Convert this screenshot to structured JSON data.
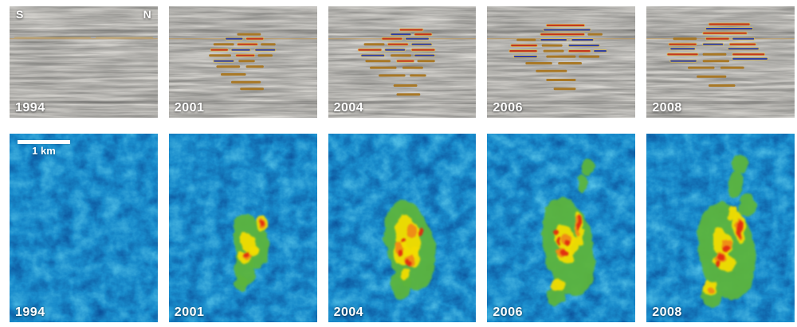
{
  "figure": {
    "description": "Time-lapse seismic monitoring figure: five seismic cross-sections (top row) and five map-view reflection-amplitude maps (bottom row) for survey years 1994, 2001, 2004, 2006 and 2008."
  },
  "years": [
    "1994",
    "2001",
    "2004",
    "2006",
    "2008"
  ],
  "labels": {
    "south_marker": "S",
    "north_marker": "N",
    "scalebar_label": "1 km"
  },
  "colors": {
    "page_background": "#ffffff",
    "seismic_base": "#b8b8b4",
    "map_base": "#2a93c8",
    "label_text": "#ffffff",
    "fringe": "#d9bc55",
    "spot": {
      "r": "#c43318",
      "b": "#2c3ba2",
      "o": "#a8751f",
      "f": "#c79a40"
    },
    "plume": {
      "green": "#5cb43c",
      "yellow": "#f2dc00",
      "orange": "#f08418",
      "red": "#df2b10"
    }
  },
  "render": {
    "seismic_seeds": [
      3,
      7,
      11,
      19,
      23
    ],
    "map_seeds": [
      5,
      13,
      29,
      37,
      41
    ]
  },
  "seismic_panels": [
    {
      "year": "1994",
      "spots": [
        [
          27.5,
          3,
          55,
          "f"
        ],
        [
          27.5,
          58,
          97,
          "f"
        ]
      ]
    },
    {
      "year": "2001",
      "spots": [
        [
          24,
          46,
          62,
          "o"
        ],
        [
          28,
          38,
          50,
          "b"
        ],
        [
          28,
          52,
          64,
          "r"
        ],
        [
          33,
          30,
          44,
          "o"
        ],
        [
          33,
          46,
          60,
          "r"
        ],
        [
          33,
          62,
          72,
          "o"
        ],
        [
          38,
          28,
          40,
          "r"
        ],
        [
          38,
          42,
          55,
          "b"
        ],
        [
          38,
          58,
          72,
          "b"
        ],
        [
          43,
          27,
          42,
          "o"
        ],
        [
          43,
          45,
          58,
          "r"
        ],
        [
          43,
          60,
          70,
          "o"
        ],
        [
          48,
          30,
          44,
          "b"
        ],
        [
          48,
          47,
          58,
          "o"
        ],
        [
          53,
          32,
          48,
          "o"
        ],
        [
          53,
          52,
          64,
          "o"
        ],
        [
          60,
          35,
          52,
          "o"
        ],
        [
          67,
          42,
          62,
          "o"
        ],
        [
          73,
          48,
          64,
          "o"
        ]
      ]
    },
    {
      "year": "2004",
      "spots": [
        [
          20,
          48,
          64,
          "r"
        ],
        [
          24,
          42,
          56,
          "b"
        ],
        [
          24,
          58,
          70,
          "r"
        ],
        [
          28,
          36,
          50,
          "r"
        ],
        [
          28,
          52,
          68,
          "b"
        ],
        [
          33,
          24,
          38,
          "o"
        ],
        [
          33,
          40,
          54,
          "r"
        ],
        [
          33,
          56,
          70,
          "b"
        ],
        [
          38,
          20,
          36,
          "r"
        ],
        [
          38,
          38,
          52,
          "b"
        ],
        [
          38,
          56,
          72,
          "r"
        ],
        [
          43,
          22,
          38,
          "b"
        ],
        [
          43,
          42,
          56,
          "o"
        ],
        [
          43,
          58,
          72,
          "b"
        ],
        [
          48,
          25,
          42,
          "o"
        ],
        [
          48,
          46,
          58,
          "r"
        ],
        [
          48,
          60,
          72,
          "o"
        ],
        [
          54,
          28,
          46,
          "o"
        ],
        [
          54,
          50,
          64,
          "o"
        ],
        [
          61,
          34,
          52,
          "o"
        ],
        [
          61,
          55,
          66,
          "o"
        ],
        [
          70,
          44,
          60,
          "o"
        ],
        [
          78,
          46,
          62,
          "o"
        ]
      ]
    },
    {
      "year": "2006",
      "spots": [
        [
          16,
          40,
          66,
          "r"
        ],
        [
          20,
          38,
          70,
          "b"
        ],
        [
          24,
          36,
          66,
          "r"
        ],
        [
          24,
          68,
          78,
          "o"
        ],
        [
          29,
          20,
          33,
          "o"
        ],
        [
          29,
          36,
          54,
          "b"
        ],
        [
          29,
          57,
          72,
          "b"
        ],
        [
          34,
          16,
          34,
          "r"
        ],
        [
          34,
          37,
          51,
          "o"
        ],
        [
          34,
          55,
          76,
          "b"
        ],
        [
          39,
          15,
          34,
          "r"
        ],
        [
          39,
          38,
          52,
          "o"
        ],
        [
          39,
          55,
          70,
          "r"
        ],
        [
          39,
          72,
          81,
          "b"
        ],
        [
          44,
          18,
          34,
          "b"
        ],
        [
          44,
          40,
          60,
          "o"
        ],
        [
          44,
          62,
          76,
          "o"
        ],
        [
          50,
          26,
          44,
          "o"
        ],
        [
          50,
          48,
          64,
          "o"
        ],
        [
          57,
          33,
          54,
          "o"
        ],
        [
          65,
          40,
          60,
          "o"
        ],
        [
          73,
          45,
          60,
          "o"
        ]
      ]
    },
    {
      "year": "2008",
      "spots": [
        [
          15,
          42,
          70,
          "r"
        ],
        [
          19,
          40,
          72,
          "b"
        ],
        [
          23,
          38,
          68,
          "r"
        ],
        [
          28,
          18,
          34,
          "o"
        ],
        [
          28,
          40,
          56,
          "r"
        ],
        [
          28,
          58,
          73,
          "b"
        ],
        [
          33,
          15,
          34,
          "r"
        ],
        [
          33,
          38,
          52,
          "b"
        ],
        [
          33,
          56,
          74,
          "r"
        ],
        [
          37,
          16,
          33,
          "b"
        ],
        [
          37,
          55,
          76,
          "b"
        ],
        [
          42,
          14,
          35,
          "r"
        ],
        [
          42,
          38,
          54,
          "o"
        ],
        [
          42,
          58,
          80,
          "r"
        ],
        [
          46,
          58,
          82,
          "b"
        ],
        [
          48,
          16,
          34,
          "b"
        ],
        [
          48,
          38,
          56,
          "o"
        ],
        [
          54,
          28,
          46,
          "o"
        ],
        [
          54,
          50,
          66,
          "o"
        ],
        [
          62,
          34,
          54,
          "o"
        ],
        [
          70,
          42,
          60,
          "o"
        ]
      ]
    }
  ],
  "map_panels": [
    {
      "year": "1994",
      "plume": null
    },
    {
      "year": "2001",
      "plume": {
        "green": [
          [
            55,
            57,
            11,
            15,
            -18
          ],
          [
            51,
            72,
            7,
            9,
            -10
          ],
          [
            49,
            79,
            4,
            4,
            0
          ]
        ],
        "yellow": [
          [
            63,
            48,
            3.5,
            4,
            0
          ],
          [
            54,
            59,
            5,
            7,
            -20
          ],
          [
            51,
            66,
            4,
            3,
            30
          ],
          [
            57,
            62,
            3,
            2,
            0
          ]
        ],
        "orange": [
          [
            63,
            48,
            2,
            2.5,
            0
          ],
          [
            53,
            65,
            2.5,
            1.5,
            20
          ]
        ],
        "red": [
          [
            52,
            64,
            1.5,
            1.2,
            0
          ],
          [
            63,
            48,
            1.2,
            1.5,
            0
          ]
        ]
      }
    },
    {
      "year": "2004",
      "plume": {
        "green": [
          [
            55,
            59,
            16,
            24,
            -14
          ],
          [
            49,
            80,
            7,
            8,
            0
          ]
        ],
        "yellow": [
          [
            54,
            55,
            8,
            12,
            -15
          ],
          [
            49,
            64,
            6,
            6,
            0
          ],
          [
            58,
            65,
            4,
            5,
            0
          ],
          [
            52,
            74,
            3,
            3,
            0
          ]
        ],
        "orange": [
          [
            56,
            52,
            3,
            4,
            0
          ],
          [
            48,
            61,
            3,
            3,
            0
          ],
          [
            55,
            67,
            3,
            3,
            0
          ]
        ],
        "red": [
          [
            62,
            52,
            1.8,
            2.5,
            0
          ],
          [
            49,
            63,
            1.8,
            1.8,
            0
          ],
          [
            54,
            68,
            1.5,
            1.5,
            0
          ],
          [
            51,
            57,
            1.4,
            1.4,
            0
          ]
        ]
      }
    },
    {
      "year": "2006",
      "plume": {
        "green": [
          [
            55,
            60,
            17,
            27,
            -10
          ],
          [
            68,
            18,
            4,
            4,
            0
          ],
          [
            64,
            26,
            3,
            5,
            0
          ],
          [
            47,
            86,
            6,
            5,
            0
          ]
        ],
        "yellow": [
          [
            62,
            50,
            3,
            9,
            -5
          ],
          [
            52,
            55,
            6,
            7,
            -20
          ],
          [
            53,
            65,
            7,
            4,
            25
          ],
          [
            48,
            80,
            5,
            3,
            10
          ],
          [
            58,
            60,
            4,
            5,
            0
          ]
        ],
        "orange": [
          [
            61,
            49,
            2,
            6,
            -5
          ],
          [
            50,
            63,
            4,
            2.5,
            20
          ],
          [
            54,
            56,
            3,
            3,
            0
          ]
        ],
        "red": [
          [
            62,
            47,
            1.6,
            4,
            -5
          ],
          [
            52,
            63,
            3.5,
            1.8,
            15
          ],
          [
            47,
            52,
            1.8,
            1.8,
            0
          ],
          [
            55,
            58,
            1.6,
            1.6,
            0
          ],
          [
            49,
            57,
            1.4,
            1.4,
            0
          ]
        ]
      }
    },
    {
      "year": "2008",
      "plume": {
        "green": [
          [
            54,
            62,
            19,
            26,
            -10
          ],
          [
            63,
            16,
            5,
            5,
            0
          ],
          [
            60,
            27,
            5,
            7,
            0
          ],
          [
            44,
            86,
            7,
            6,
            0
          ],
          [
            68,
            38,
            6,
            6,
            0
          ]
        ],
        "yellow": [
          [
            63,
            50,
            4,
            9,
            -5
          ],
          [
            51,
            58,
            6,
            8,
            -15
          ],
          [
            53,
            68,
            8,
            5,
            20
          ],
          [
            43,
            82,
            5,
            4,
            0
          ],
          [
            58,
            42,
            3,
            4,
            0
          ]
        ],
        "orange": [
          [
            63,
            51,
            2.5,
            6,
            -5
          ],
          [
            50,
            66,
            4,
            3,
            15
          ],
          [
            54,
            59,
            3,
            3,
            0
          ],
          [
            44,
            83,
            2.5,
            2,
            0
          ]
        ],
        "red": [
          [
            63,
            51,
            1.8,
            5,
            -5
          ],
          [
            50,
            66,
            3,
            2,
            10
          ],
          [
            54,
            61,
            1.8,
            1.8,
            0
          ],
          [
            48,
            70,
            1.5,
            1.5,
            0
          ]
        ]
      }
    }
  ]
}
